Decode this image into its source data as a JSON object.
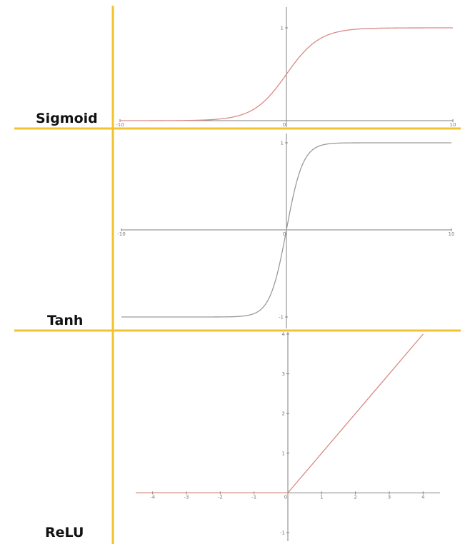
{
  "colors": {
    "divider": "#f2c230",
    "axis": "#808080",
    "sigmoid_curve": "#d98a86",
    "tanh_curve": "#9a9a9a",
    "relu_curve": "#d98a86"
  },
  "chart_data": [
    {
      "type": "line",
      "label": "Sigmoid",
      "function": "sigmoid",
      "xlim": [
        -10,
        10
      ],
      "ylim": [
        0,
        1
      ],
      "x_tick_labels": [
        "-10",
        "0",
        "10"
      ],
      "y_tick_labels": [
        "1"
      ],
      "x": [
        -10,
        -8,
        -6,
        -4,
        -3,
        -2,
        -1,
        0,
        1,
        2,
        3,
        4,
        6,
        8,
        10
      ],
      "y": [
        4.54e-05,
        0.000335,
        0.00247,
        0.018,
        0.0474,
        0.1192,
        0.2689,
        0.5,
        0.7311,
        0.8808,
        0.9526,
        0.982,
        0.9975,
        0.9997,
        0.99995
      ]
    },
    {
      "type": "line",
      "label": "Tanh",
      "function": "tanh",
      "xlim": [
        -10,
        10
      ],
      "ylim": [
        -1,
        1
      ],
      "x_tick_labels": [
        "-10",
        "0",
        "10"
      ],
      "y_tick_labels": [
        "1",
        "-1"
      ],
      "x": [
        -10,
        -4,
        -3,
        -2,
        -1.5,
        -1,
        -0.5,
        0,
        0.5,
        1,
        1.5,
        2,
        3,
        4,
        10
      ],
      "y": [
        -1,
        -0.9993,
        -0.9951,
        -0.964,
        -0.9051,
        -0.7616,
        -0.4621,
        0,
        0.4621,
        0.7616,
        0.9051,
        0.964,
        0.9951,
        0.9993,
        1
      ]
    },
    {
      "type": "line",
      "label": "ReLU",
      "function": "relu",
      "xlim": [
        -4.5,
        4.5
      ],
      "ylim": [
        -1,
        4
      ],
      "x_tick_labels": [
        "-4",
        "-3",
        "-2",
        "-1",
        "0",
        "1",
        "2",
        "3",
        "4"
      ],
      "y_tick_labels": [
        "4",
        "3",
        "2",
        "1",
        "-1"
      ],
      "x": [
        -4.5,
        0,
        4
      ],
      "y": [
        0,
        0,
        4
      ]
    }
  ]
}
